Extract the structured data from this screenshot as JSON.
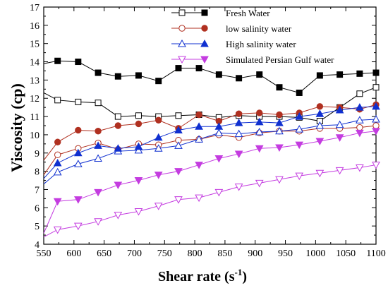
{
  "chart_data": {
    "type": "line",
    "title": "",
    "xlabel": "Shear rate (s",
    "xlabel_sup": "-1",
    "xlabel_end": ")",
    "ylabel": "Viscosity (cp)",
    "xlim": [
      550,
      1100
    ],
    "ylim": [
      4,
      17
    ],
    "xticks": [
      550,
      600,
      650,
      700,
      750,
      800,
      850,
      900,
      950,
      1000,
      1050,
      1100
    ],
    "yticks": [
      4,
      5,
      6,
      7,
      8,
      9,
      10,
      11,
      12,
      13,
      14,
      15,
      16,
      17
    ],
    "grid": false,
    "legend_position": "top-right",
    "x": [
      550,
      573,
      607,
      640,
      673,
      707,
      740,
      773,
      807,
      840,
      873,
      907,
      940,
      973,
      1007,
      1040,
      1073,
      1100
    ],
    "series": [
      {
        "name": "Fresh Water",
        "color": "#000000",
        "lines": [
          {
            "marker": "square-open",
            "values": [
              12.3,
              11.9,
              11.8,
              11.75,
              11.0,
              11.05,
              11.0,
              11.05,
              11.1,
              10.95,
              11.05,
              11.0,
              11.0,
              10.95,
              10.75,
              11.5,
              12.25,
              12.6
            ]
          },
          {
            "marker": "square-filled",
            "values": [
              13.9,
              14.05,
              14.0,
              13.4,
              13.2,
              13.25,
              12.95,
              13.65,
              13.65,
              13.3,
              13.1,
              13.3,
              12.6,
              12.3,
              13.25,
              13.3,
              13.35,
              13.4
            ]
          }
        ]
      },
      {
        "name": "low salinity water",
        "color": "#b03020",
        "lines": [
          {
            "marker": "circle-open",
            "values": [
              7.8,
              8.9,
              9.25,
              9.55,
              9.2,
              9.5,
              9.45,
              9.7,
              9.75,
              10.0,
              9.85,
              10.1,
              10.2,
              10.2,
              10.35,
              10.35,
              10.4,
              10.5
            ]
          },
          {
            "marker": "circle-filled",
            "values": [
              8.6,
              9.6,
              10.25,
              10.2,
              10.5,
              10.6,
              10.8,
              10.35,
              11.1,
              10.75,
              11.15,
              11.2,
              11.1,
              11.2,
              11.55,
              11.5,
              11.4,
              11.65
            ]
          }
        ]
      },
      {
        "name": "High salinity water",
        "color": "#1030d0",
        "lines": [
          {
            "marker": "triangle-up-open",
            "values": [
              7.3,
              7.95,
              8.4,
              8.7,
              9.1,
              9.15,
              9.25,
              9.4,
              9.75,
              10.1,
              10.05,
              10.15,
              10.2,
              10.3,
              10.5,
              10.55,
              10.8,
              10.85
            ]
          },
          {
            "marker": "triangle-up-filled",
            "values": [
              7.6,
              8.45,
              9.0,
              9.4,
              9.25,
              9.35,
              9.85,
              10.25,
              10.45,
              10.45,
              10.65,
              10.7,
              10.65,
              11.0,
              11.15,
              11.35,
              11.5,
              11.55
            ]
          }
        ]
      },
      {
        "name": "Simulated Persian Gulf water",
        "color": "#c43ce0",
        "lines": [
          {
            "marker": "triangle-down-open",
            "values": [
              4.4,
              4.8,
              5.0,
              5.25,
              5.6,
              5.8,
              6.1,
              6.45,
              6.55,
              6.85,
              7.15,
              7.35,
              7.55,
              7.75,
              7.9,
              8.05,
              8.2,
              8.35
            ]
          },
          {
            "marker": "triangle-down-filled",
            "values": [
              4.6,
              6.35,
              6.45,
              6.85,
              7.25,
              7.5,
              7.8,
              8.0,
              8.35,
              8.7,
              8.95,
              9.25,
              9.3,
              9.45,
              9.65,
              9.85,
              10.1,
              10.2
            ]
          }
        ]
      }
    ]
  }
}
